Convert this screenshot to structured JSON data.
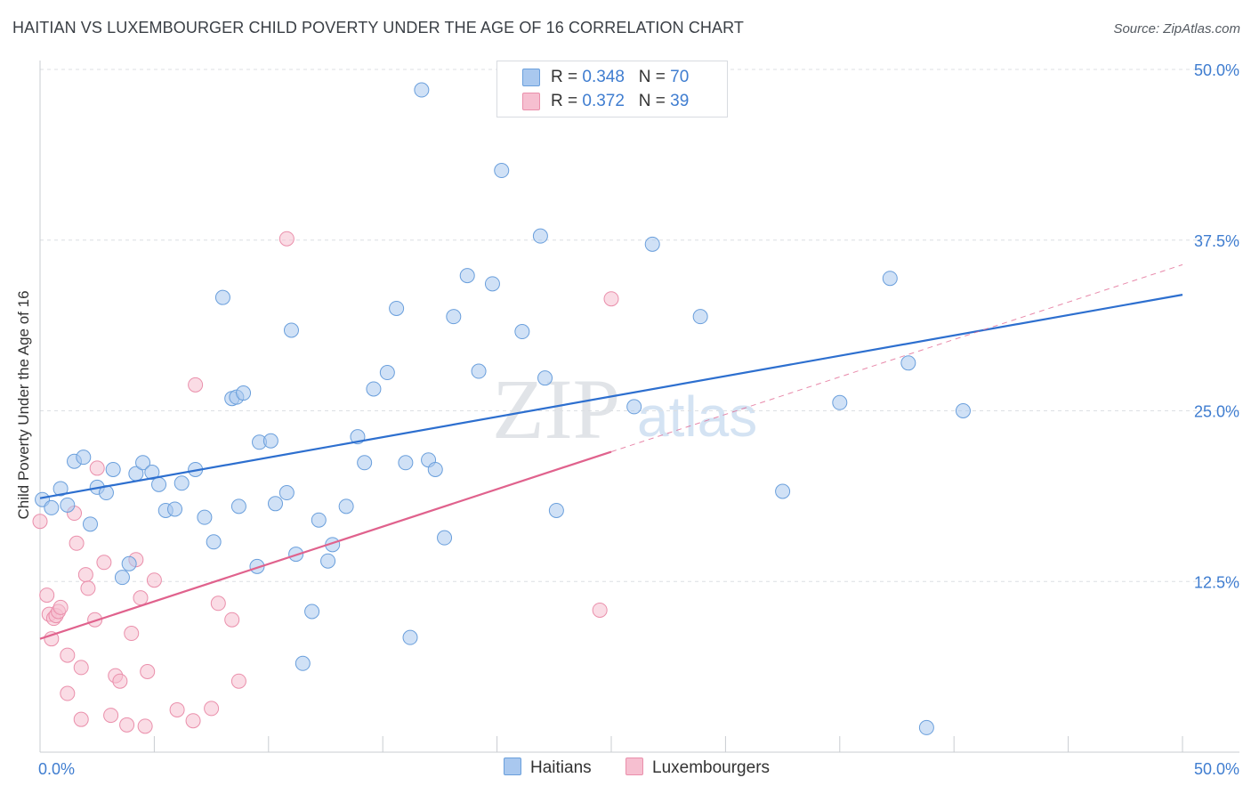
{
  "header": {
    "title": "HAITIAN VS LUXEMBOURGER CHILD POVERTY UNDER THE AGE OF 16 CORRELATION CHART",
    "source": "Source: ZipAtlas.com"
  },
  "legend": {
    "rows": [
      {
        "r_label": "R = ",
        "r_value": "0.348",
        "n_label": "N = ",
        "n_value": "70"
      },
      {
        "r_label": "R = ",
        "r_value": "0.372",
        "n_label": "N = ",
        "n_value": "39"
      }
    ]
  },
  "bottom_legend": {
    "haitians": "Haitians",
    "luxembourgers": "Luxembourgers"
  },
  "watermark": {
    "zip": "ZIP",
    "atlas": "atlas"
  },
  "colors": {
    "haitians_fill": "#a9c8ef",
    "haitians_stroke": "#6a9fdc",
    "haitians_line": "#2d6fcf",
    "luxembourgers_fill": "#f6bfd0",
    "luxembourgers_stroke": "#ea8fab",
    "luxembourgers_line": "#e0628d",
    "tick_text": "#3f7dd0",
    "grid": "#dcdfe3"
  },
  "chart_data": {
    "type": "scatter",
    "title": "HAITIAN VS LUXEMBOURGER CHILD POVERTY UNDER THE AGE OF 16 CORRELATION CHART",
    "xlabel": "",
    "ylabel": "Child Poverty Under the Age of 16",
    "xlim": [
      0,
      50
    ],
    "ylim": [
      0,
      50
    ],
    "x_tick_labels": [
      "0.0%",
      "50.0%"
    ],
    "y_ticks": [
      12.5,
      25.0,
      37.5,
      50.0
    ],
    "y_tick_labels": [
      "12.5%",
      "25.0%",
      "37.5%",
      "50.0%"
    ],
    "grid": true,
    "legend_position": "top-center",
    "series": [
      {
        "name": "Haitians",
        "r": 0.348,
        "n": 70,
        "trend": {
          "x": [
            0,
            50
          ],
          "y": [
            18.6,
            33.5
          ],
          "style": "solid"
        },
        "points": [
          [
            0.1,
            18.5
          ],
          [
            0.5,
            17.9
          ],
          [
            0.9,
            19.3
          ],
          [
            1.2,
            18.1
          ],
          [
            1.5,
            21.3
          ],
          [
            1.9,
            21.6
          ],
          [
            2.2,
            16.7
          ],
          [
            2.5,
            19.4
          ],
          [
            2.9,
            19.0
          ],
          [
            3.2,
            20.7
          ],
          [
            3.6,
            12.8
          ],
          [
            3.9,
            13.8
          ],
          [
            4.2,
            20.4
          ],
          [
            4.5,
            21.2
          ],
          [
            4.9,
            20.5
          ],
          [
            5.2,
            19.6
          ],
          [
            5.5,
            17.7
          ],
          [
            5.9,
            17.8
          ],
          [
            6.2,
            19.7
          ],
          [
            6.8,
            20.7
          ],
          [
            7.2,
            17.2
          ],
          [
            7.6,
            15.4
          ],
          [
            8.0,
            33.3
          ],
          [
            8.4,
            25.9
          ],
          [
            8.6,
            26.0
          ],
          [
            8.7,
            18.0
          ],
          [
            8.9,
            26.3
          ],
          [
            9.5,
            13.6
          ],
          [
            9.6,
            22.7
          ],
          [
            10.1,
            22.8
          ],
          [
            10.3,
            18.2
          ],
          [
            10.8,
            19.0
          ],
          [
            11.0,
            30.9
          ],
          [
            11.2,
            14.5
          ],
          [
            11.5,
            6.5
          ],
          [
            11.9,
            10.3
          ],
          [
            12.2,
            17.0
          ],
          [
            12.6,
            14.0
          ],
          [
            12.8,
            15.2
          ],
          [
            13.4,
            18.0
          ],
          [
            13.9,
            23.1
          ],
          [
            14.2,
            21.2
          ],
          [
            14.6,
            26.6
          ],
          [
            15.2,
            27.8
          ],
          [
            15.6,
            32.5
          ],
          [
            16.0,
            21.2
          ],
          [
            16.2,
            8.4
          ],
          [
            16.7,
            48.5
          ],
          [
            17.0,
            21.4
          ],
          [
            17.3,
            20.7
          ],
          [
            17.7,
            15.7
          ],
          [
            18.1,
            31.9
          ],
          [
            18.7,
            34.9
          ],
          [
            19.2,
            27.9
          ],
          [
            19.8,
            34.3
          ],
          [
            20.2,
            42.6
          ],
          [
            21.1,
            30.8
          ],
          [
            21.9,
            37.8
          ],
          [
            22.1,
            27.4
          ],
          [
            22.6,
            17.7
          ],
          [
            26.0,
            25.3
          ],
          [
            26.8,
            37.2
          ],
          [
            28.2,
            47.4
          ],
          [
            28.9,
            31.9
          ],
          [
            32.5,
            19.1
          ],
          [
            35.0,
            25.6
          ],
          [
            37.2,
            34.7
          ],
          [
            38.0,
            28.5
          ],
          [
            38.8,
            1.8
          ],
          [
            40.4,
            25.0
          ]
        ]
      },
      {
        "name": "Luxembourgers",
        "r": 0.372,
        "n": 39,
        "trend": {
          "x": [
            0,
            25
          ],
          "y": [
            8.3,
            22.0
          ],
          "style": "solid",
          "extension": {
            "x": [
              25,
              50
            ],
            "y": [
              22.0,
              35.7
            ],
            "style": "dashed"
          }
        },
        "points": [
          [
            0.0,
            16.9
          ],
          [
            0.3,
            11.5
          ],
          [
            0.4,
            10.1
          ],
          [
            0.5,
            8.3
          ],
          [
            0.6,
            9.8
          ],
          [
            0.7,
            10.0
          ],
          [
            0.8,
            10.3
          ],
          [
            0.9,
            10.6
          ],
          [
            1.2,
            7.1
          ],
          [
            1.2,
            4.3
          ],
          [
            1.5,
            17.5
          ],
          [
            1.6,
            15.3
          ],
          [
            1.8,
            6.2
          ],
          [
            1.8,
            2.4
          ],
          [
            2.0,
            13.0
          ],
          [
            2.1,
            12.0
          ],
          [
            2.4,
            9.7
          ],
          [
            2.5,
            20.8
          ],
          [
            2.8,
            13.9
          ],
          [
            3.1,
            2.7
          ],
          [
            3.3,
            5.6
          ],
          [
            3.5,
            5.2
          ],
          [
            3.8,
            2.0
          ],
          [
            4.0,
            8.7
          ],
          [
            4.2,
            14.1
          ],
          [
            4.4,
            11.3
          ],
          [
            4.6,
            1.9
          ],
          [
            4.7,
            5.9
          ],
          [
            5.0,
            12.6
          ],
          [
            6.0,
            3.1
          ],
          [
            6.7,
            2.3
          ],
          [
            6.8,
            26.9
          ],
          [
            7.5,
            3.2
          ],
          [
            7.8,
            10.9
          ],
          [
            8.4,
            9.7
          ],
          [
            8.7,
            5.2
          ],
          [
            10.8,
            37.6
          ],
          [
            24.5,
            10.4
          ],
          [
            25.0,
            33.2
          ]
        ]
      }
    ]
  }
}
